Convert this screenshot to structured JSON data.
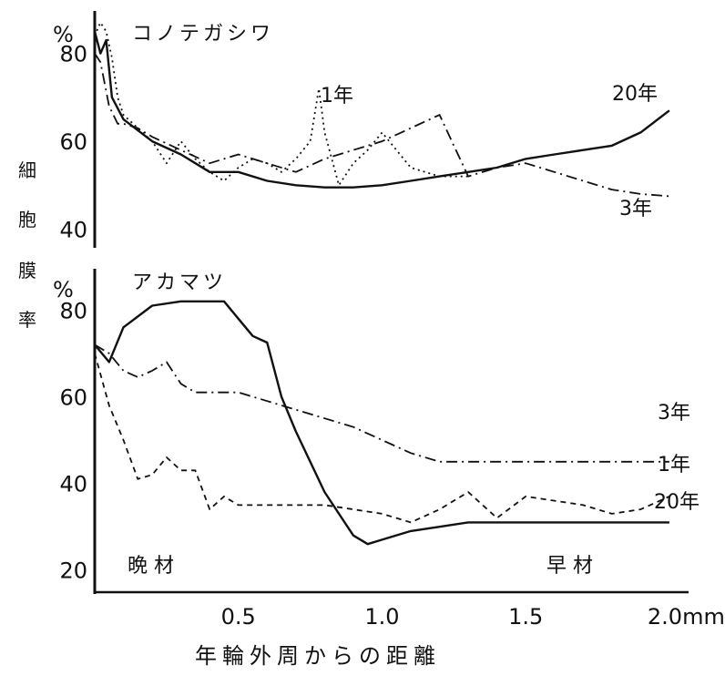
{
  "chart_data": [
    {
      "type": "line",
      "title": "コノテガシワ",
      "y_unit": "%",
      "ylim": [
        37,
        88
      ],
      "yticks": [
        40,
        60,
        80
      ],
      "xlim": [
        0,
        2.07
      ],
      "series": [
        {
          "name": "20年",
          "style": "solid",
          "x": [
            0.0,
            0.02,
            0.04,
            0.06,
            0.1,
            0.2,
            0.3,
            0.4,
            0.5,
            0.6,
            0.7,
            0.8,
            0.9,
            1.0,
            1.1,
            1.2,
            1.3,
            1.4,
            1.5,
            1.6,
            1.7,
            1.8,
            1.9,
            2.0
          ],
          "y": [
            85,
            80,
            83,
            70,
            65,
            60,
            57,
            53,
            53,
            51,
            50,
            49.5,
            49.5,
            50,
            51,
            52,
            53,
            54,
            56,
            57,
            58,
            59,
            62,
            67
          ]
        },
        {
          "name": "1年",
          "style": "dotted",
          "x": [
            0.0,
            0.02,
            0.04,
            0.06,
            0.08,
            0.1,
            0.2,
            0.25,
            0.3,
            0.35,
            0.4,
            0.45,
            0.5,
            0.55,
            0.6,
            0.65,
            0.7,
            0.75,
            0.78,
            0.8,
            0.85,
            0.9,
            0.95,
            1.0,
            1.1,
            1.2,
            1.3
          ],
          "y": [
            84,
            87,
            85,
            79,
            70,
            66,
            60,
            55,
            60,
            56,
            53,
            51,
            54,
            56,
            55,
            53,
            56,
            60,
            72,
            62,
            50,
            55,
            58,
            62,
            54,
            52,
            52
          ]
        },
        {
          "name": "3年",
          "style": "dashdot",
          "x": [
            0.0,
            0.02,
            0.05,
            0.08,
            0.1,
            0.15,
            0.2,
            0.3,
            0.4,
            0.5,
            0.6,
            0.7,
            0.8,
            0.9,
            1.0,
            1.1,
            1.2,
            1.25,
            1.3,
            1.4,
            1.5,
            1.6,
            1.7,
            1.8,
            1.9,
            2.0
          ],
          "y": [
            80,
            78,
            68,
            64,
            64,
            63,
            61,
            58,
            55,
            57,
            55,
            53,
            56,
            58,
            60,
            63,
            66,
            59,
            52,
            54,
            55,
            53,
            51,
            49,
            48,
            47.5
          ]
        }
      ]
    },
    {
      "type": "line",
      "title": "アカマツ",
      "y_unit": "%",
      "ylim": [
        17,
        87
      ],
      "yticks": [
        20,
        40,
        60,
        80
      ],
      "xlim": [
        0,
        2.07
      ],
      "series": [
        {
          "name": "20年",
          "style": "solid",
          "x": [
            0.0,
            0.05,
            0.1,
            0.2,
            0.3,
            0.4,
            0.45,
            0.5,
            0.55,
            0.6,
            0.65,
            0.7,
            0.8,
            0.9,
            0.95,
            1.0,
            1.1,
            1.2,
            1.3,
            1.4,
            1.5,
            1.6,
            1.7,
            1.8,
            1.9,
            2.0
          ],
          "y": [
            72,
            68,
            76,
            81,
            82,
            82,
            82,
            78,
            74,
            72.5,
            60,
            52,
            38,
            28,
            26,
            27,
            29,
            30,
            31,
            31,
            31,
            31,
            31,
            31,
            31,
            31
          ]
        },
        {
          "name": "3年",
          "style": "dashdot",
          "x": [
            0.0,
            0.05,
            0.1,
            0.15,
            0.2,
            0.25,
            0.3,
            0.35,
            0.4,
            0.5,
            0.6,
            0.7,
            0.8,
            0.9,
            1.0,
            1.1,
            1.2,
            1.3,
            1.4,
            1.5,
            1.6,
            1.7,
            1.8,
            1.9,
            2.0
          ],
          "y": [
            72,
            70,
            66,
            64.5,
            66,
            68,
            63,
            61,
            61,
            61,
            59,
            57,
            55,
            53,
            50,
            47,
            45,
            45,
            45,
            45,
            45,
            45,
            45,
            45,
            45
          ]
        },
        {
          "name": "1年",
          "style": "dashed",
          "x": [
            0.0,
            0.05,
            0.1,
            0.15,
            0.2,
            0.25,
            0.3,
            0.35,
            0.4,
            0.45,
            0.5,
            0.6,
            0.7,
            0.8,
            0.9,
            1.0,
            1.1,
            1.2,
            1.3,
            1.4,
            1.5,
            1.6,
            1.7,
            1.8,
            1.9,
            2.0
          ],
          "y": [
            70,
            58,
            50,
            41,
            42,
            46,
            43,
            43,
            34,
            37,
            35,
            35,
            35,
            35,
            34,
            33,
            31,
            34,
            38,
            32,
            37,
            36,
            35,
            33,
            34,
            37
          ]
        }
      ]
    }
  ],
  "y_axis_label": "細胞膜率",
  "x_axis_label": "年輪外周からの距離",
  "x_ticks": [
    "0.5",
    "1.0",
    "1.5",
    "2.0mm"
  ],
  "x_tick_values": [
    0.5,
    1.0,
    1.5,
    2.0
  ],
  "annotations": {
    "latewood": "晩 材",
    "earlywood": "早 材"
  },
  "colors": {
    "line": "#111111",
    "background": "#ffffff"
  }
}
